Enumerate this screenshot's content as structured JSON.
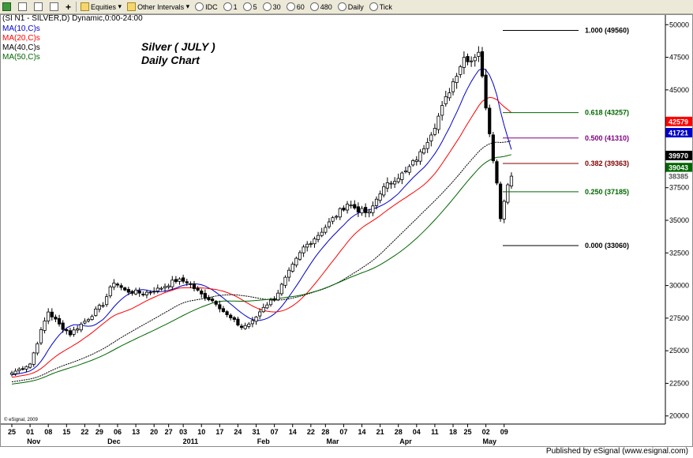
{
  "toolbar": {
    "items": [
      {
        "label": "Equities",
        "icon": "folder-icon"
      },
      {
        "label": "Other Intervals",
        "icon": "folder-icon"
      },
      {
        "label": "IDC",
        "icon": "clock-icon"
      },
      {
        "label": "1",
        "icon": "clock-icon"
      },
      {
        "label": "5",
        "icon": "clock-icon"
      },
      {
        "label": "30",
        "icon": "clock-icon"
      },
      {
        "label": "60",
        "icon": "clock-icon"
      },
      {
        "label": "480",
        "icon": "clock-icon"
      },
      {
        "label": "Daily",
        "icon": "clock-icon"
      },
      {
        "label": "Tick",
        "icon": "clock-icon"
      }
    ]
  },
  "footer": {
    "text": "Published by eSignal (www.esignal.com)"
  },
  "chart_data": {
    "type": "candlestick",
    "symbol_line": "(SI N1 - SILVER,D) Dynamic,0:00-24:00",
    "title_line1": "Silver ( JULY )",
    "title_line2": "Daily Chart",
    "watermark": "© eSignal, 2009",
    "ylim": [
      19500,
      50500
    ],
    "y_ticks": [
      20000,
      22500,
      25000,
      27500,
      30000,
      32500,
      35000,
      37500,
      40000,
      42500,
      45000,
      47500,
      50000
    ],
    "x_ticks": [
      {
        "label": "25",
        "bar": 0
      },
      {
        "label": "01",
        "bar": 5
      },
      {
        "label": "08",
        "bar": 10
      },
      {
        "label": "15",
        "bar": 15
      },
      {
        "label": "22",
        "bar": 20
      },
      {
        "label": "29",
        "bar": 24
      },
      {
        "label": "06",
        "bar": 29
      },
      {
        "label": "13",
        "bar": 34
      },
      {
        "label": "20",
        "bar": 39
      },
      {
        "label": "27",
        "bar": 43
      },
      {
        "label": "03",
        "bar": 47
      },
      {
        "label": "10",
        "bar": 52
      },
      {
        "label": "17",
        "bar": 57
      },
      {
        "label": "24",
        "bar": 62
      },
      {
        "label": "31",
        "bar": 67
      },
      {
        "label": "07",
        "bar": 72
      },
      {
        "label": "14",
        "bar": 77
      },
      {
        "label": "22",
        "bar": 82
      },
      {
        "label": "28",
        "bar": 86
      },
      {
        "label": "07",
        "bar": 91
      },
      {
        "label": "14",
        "bar": 96
      },
      {
        "label": "21",
        "bar": 101
      },
      {
        "label": "28",
        "bar": 106
      },
      {
        "label": "04",
        "bar": 111
      },
      {
        "label": "11",
        "bar": 116
      },
      {
        "label": "18",
        "bar": 121
      },
      {
        "label": "25",
        "bar": 125
      },
      {
        "label": "02",
        "bar": 130
      },
      {
        "label": "09",
        "bar": 135
      }
    ],
    "month_labels": [
      {
        "label": "Nov",
        "bar": 6
      },
      {
        "label": "Dec",
        "bar": 28
      },
      {
        "label": "2011",
        "bar": 49
      },
      {
        "label": "Feb",
        "bar": 69
      },
      {
        "label": "Mar",
        "bar": 88
      },
      {
        "label": "Apr",
        "bar": 108
      },
      {
        "label": "May",
        "bar": 131
      }
    ],
    "anchors": [
      [
        0,
        23300
      ],
      [
        5,
        24000
      ],
      [
        8,
        26500
      ],
      [
        10,
        28000
      ],
      [
        13,
        27000
      ],
      [
        16,
        26300
      ],
      [
        21,
        27500
      ],
      [
        25,
        28600
      ],
      [
        28,
        30300
      ],
      [
        31,
        29600
      ],
      [
        36,
        29400
      ],
      [
        40,
        29700
      ],
      [
        45,
        30400
      ],
      [
        48,
        30300
      ],
      [
        52,
        29300
      ],
      [
        56,
        28700
      ],
      [
        59,
        27700
      ],
      [
        63,
        26800
      ],
      [
        66,
        27200
      ],
      [
        69,
        28400
      ],
      [
        72,
        29000
      ],
      [
        76,
        31000
      ],
      [
        80,
        32900
      ],
      [
        84,
        33900
      ],
      [
        88,
        35100
      ],
      [
        92,
        36300
      ],
      [
        95,
        35800
      ],
      [
        98,
        35500
      ],
      [
        101,
        37200
      ],
      [
        105,
        38200
      ],
      [
        108,
        38700
      ],
      [
        112,
        40100
      ],
      [
        116,
        42300
      ],
      [
        119,
        44300
      ],
      [
        122,
        46300
      ],
      [
        124,
        47500
      ],
      [
        126,
        47300
      ],
      [
        128,
        48000
      ],
      [
        130,
        43800
      ],
      [
        132,
        39800
      ],
      [
        133,
        37800
      ],
      [
        134,
        35300
      ],
      [
        135,
        36500
      ],
      [
        136,
        37900
      ],
      [
        137,
        38385
      ]
    ],
    "series": [
      {
        "name": "MA(10,C)s",
        "color": "#0000cc",
        "period": 10
      },
      {
        "name": "MA(20,C)s",
        "color": "#ff0000",
        "period": 20
      },
      {
        "name": "MA(40,C)s",
        "color": "#000000",
        "period": 40
      },
      {
        "name": "MA(50,C)s",
        "color": "#006600",
        "period": 50
      }
    ],
    "fib_levels": [
      {
        "label": "1.000 (49560)",
        "value": 49560,
        "color": "#000000"
      },
      {
        "label": "0.618 (43257)",
        "value": 43257,
        "color": "#006600"
      },
      {
        "label": "0.500 (41310)",
        "value": 41310,
        "color": "#800080"
      },
      {
        "label": "0.382 (39363)",
        "value": 39363,
        "color": "#800000"
      },
      {
        "label": "0.250 (37185)",
        "value": 37185,
        "color": "#006600"
      },
      {
        "label": "0.000 (33060)",
        "value": 33060,
        "color": "#000000"
      }
    ],
    "price_flags": [
      {
        "label": "42579",
        "value": 42579,
        "bg": "#ff0000",
        "fg": "#ffffff"
      },
      {
        "label": "41721",
        "value": 41721,
        "bg": "#0000cc",
        "fg": "#ffffff"
      },
      {
        "label": "39970",
        "value": 39970,
        "bg": "#000000",
        "fg": "#ffffff"
      },
      {
        "label": "39043",
        "value": 39043,
        "bg": "#006600",
        "fg": "#ffffff"
      },
      {
        "label": "38385",
        "value": 38385,
        "bg": "#ffffff",
        "fg": "#555555"
      }
    ],
    "grid": false
  }
}
